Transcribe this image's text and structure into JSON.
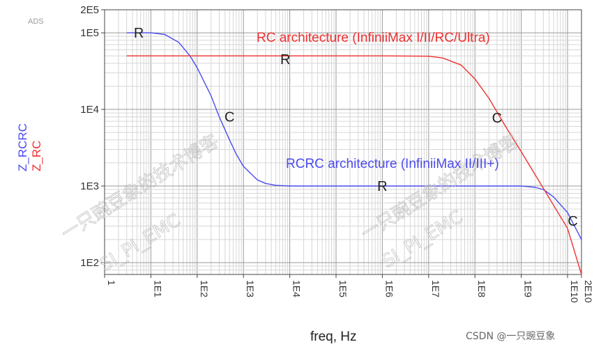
{
  "app_tag": "ADS",
  "watermark": {
    "cn": "一只豌豆象的技术博客",
    "en": "SI_PI_EMC"
  },
  "credit": "CSDN @一只豌豆象",
  "colors": {
    "rcrc": "#4b4bf0",
    "rc": "#f03030",
    "grid_major": "#9a9a9a",
    "grid_minor": "#d6d6d6"
  },
  "chart_data": {
    "type": "line",
    "title": "",
    "xlabel": "freq, Hz",
    "ylabels": [
      {
        "text": "Z_RCRC",
        "color": "#4b4bf0"
      },
      {
        "text": "Z_RC",
        "color": "#f03030"
      }
    ],
    "x_scale": "log",
    "y_scale": "log",
    "xlim": [
      1,
      20000000000.0
    ],
    "ylim": [
      70,
      200000
    ],
    "x_ticks": [
      {
        "v": 1,
        "label": "1"
      },
      {
        "v": 10,
        "label": "1E1"
      },
      {
        "v": 100,
        "label": "1E2"
      },
      {
        "v": 1000,
        "label": "1E3"
      },
      {
        "v": 10000,
        "label": "1E4"
      },
      {
        "v": 100000,
        "label": "1E5"
      },
      {
        "v": 1000000,
        "label": "1E6"
      },
      {
        "v": 10000000,
        "label": "1E7"
      },
      {
        "v": 100000000,
        "label": "1E8"
      },
      {
        "v": 1000000000,
        "label": "1E9"
      },
      {
        "v": 10000000000,
        "label": "1E10"
      },
      {
        "v": 20000000000,
        "label": "2E10"
      }
    ],
    "y_ticks": [
      {
        "v": 100,
        "label": "1E2"
      },
      {
        "v": 1000,
        "label": "1E3"
      },
      {
        "v": 10000,
        "label": "1E4"
      },
      {
        "v": 100000,
        "label": "1E5"
      },
      {
        "v": 200000,
        "label": "2E5"
      }
    ],
    "grid": true,
    "series": [
      {
        "name": "Z_RCRC",
        "color": "#4b4bf0",
        "x": [
          3,
          10,
          20,
          40,
          70,
          100,
          200,
          300,
          500,
          700,
          1000,
          2000,
          3000,
          5000,
          10000,
          20000,
          100000,
          1000000,
          10000000,
          100000000,
          500000000,
          1000000000,
          2000000000,
          3000000000,
          5000000000,
          10000000000,
          20000000000
        ],
        "y": [
          100000,
          100000,
          95000,
          75000,
          50000,
          35000,
          15000,
          8000,
          4000,
          2600,
          1800,
          1200,
          1080,
          1020,
          1000,
          1000,
          1000,
          1000,
          1000,
          1000,
          1000,
          1000,
          960,
          900,
          720,
          450,
          200
        ]
      },
      {
        "name": "Z_RC",
        "color": "#f03030",
        "x": [
          3,
          10,
          100,
          1000,
          10000,
          100000,
          1000000,
          10000000,
          20000000,
          50000000,
          100000000,
          200000000,
          500000000,
          1000000000,
          2000000000,
          5000000000,
          10000000000,
          20000000000
        ],
        "y": [
          50000,
          50000,
          50000,
          50000,
          50000,
          50000,
          50000,
          49500,
          47000,
          38000,
          25000,
          14000,
          5500,
          2800,
          1400,
          560,
          280,
          70
        ]
      }
    ],
    "annotations": [
      {
        "text": "RC architecture (InfiniiMax I/II/RC/Ultra)",
        "color": "#f03030"
      },
      {
        "text": "RCRC architecture (InfiniiMax II/III+)",
        "color": "#4b4bf0"
      }
    ],
    "markers": [
      {
        "text": "R",
        "x": 5.5,
        "y": 100000
      },
      {
        "text": "R",
        "x": 8000,
        "y": 45000
      },
      {
        "text": "C",
        "x": 500,
        "y": 8000
      },
      {
        "text": "C",
        "x": 300000000,
        "y": 7800
      },
      {
        "text": "R",
        "x": 1000000,
        "y": 1000
      },
      {
        "text": "C",
        "x": 13000000000,
        "y": 350
      }
    ]
  }
}
